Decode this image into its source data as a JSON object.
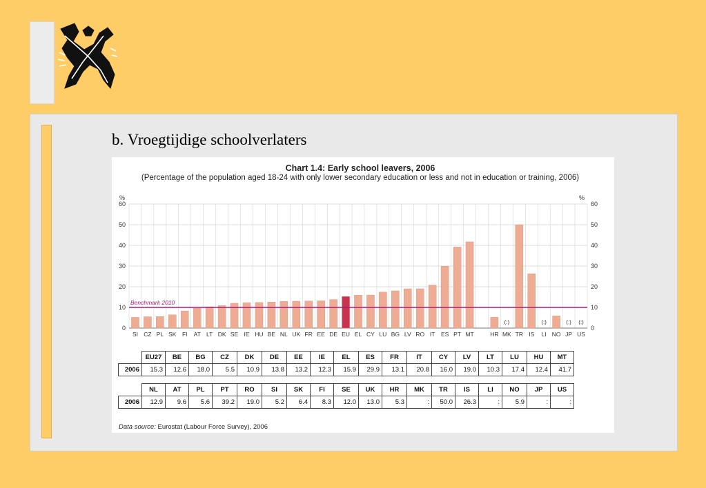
{
  "slide": {
    "title": "b. Vroegtijdige schoolverlaters",
    "colors": {
      "background": "#fecd68",
      "panel": "#e9e9e9"
    },
    "logo_icon": "flemish-lion-icon"
  },
  "chart": {
    "title": "Chart 1.4: Early school leavers, 2006",
    "subtitle": "(Percentage of the population aged 18-24 with only lower secondary education or less and not in education or training, 2006)",
    "source_prefix": "Data source:",
    "source_text": " Eurostat (Labour Force Survey), 2006"
  },
  "chart_data": {
    "type": "bar",
    "title": "Chart 1.4: Early school leavers, 2006",
    "subtitle": "(Percentage of the population aged 18-24 with only lower secondary education or less and not in education or training, 2006)",
    "y_unit": "%",
    "ylim": [
      0,
      60
    ],
    "yticks": [
      0,
      10,
      20,
      30,
      40,
      50,
      60
    ],
    "grid": true,
    "benchmark": {
      "label": "Benchmark 2010",
      "value": 10,
      "color": "#b5177a"
    },
    "colors": {
      "bar": "#eeac94",
      "highlight": "#c8344f",
      "grid": "#bbbbbb"
    },
    "categories": [
      "SI",
      "CZ",
      "PL",
      "SK",
      "FI",
      "AT",
      "LT",
      "DK",
      "SE",
      "IE",
      "HU",
      "BE",
      "NL",
      "UK",
      "FR",
      "EE",
      "DE",
      "EU",
      "EL",
      "CY",
      "LU",
      "BG",
      "LV",
      "RO",
      "IT",
      "ES",
      "PT",
      "MT",
      "",
      "HR",
      "MK",
      "TR",
      "IS",
      "LI",
      "NO",
      "JP",
      "US"
    ],
    "values": [
      5.2,
      5.5,
      5.6,
      6.4,
      8.3,
      9.6,
      10.3,
      10.9,
      12.0,
      12.3,
      12.4,
      12.6,
      12.9,
      13.0,
      13.1,
      13.2,
      13.8,
      15.3,
      15.9,
      16.0,
      17.4,
      18.0,
      19.0,
      19.0,
      20.8,
      29.9,
      39.2,
      41.7,
      null,
      5.3,
      null,
      50.0,
      26.3,
      null,
      5.9,
      null,
      null
    ],
    "missing_label": "(:)",
    "highlight": "EU",
    "table": [
      {
        "headers": [
          "EU27",
          "BE",
          "BG",
          "CZ",
          "DK",
          "DE",
          "EE",
          "IE",
          "EL",
          "ES",
          "FR",
          "IT",
          "CY",
          "LV",
          "LT",
          "LU",
          "HU",
          "MT"
        ],
        "row_label": "2006",
        "values": [
          "15.3",
          "12.6",
          "18.0",
          "5.5",
          "10.9",
          "13.8",
          "13.2",
          "12.3",
          "15.9",
          "29.9",
          "13.1",
          "20.8",
          "16.0",
          "19.0",
          "10.3",
          "17.4",
          "12.4",
          "41.7"
        ]
      },
      {
        "headers": [
          "NL",
          "AT",
          "PL",
          "PT",
          "RO",
          "SI",
          "SK",
          "FI",
          "SE",
          "UK",
          "HR",
          "MK",
          "TR",
          "IS",
          "LI",
          "NO",
          "JP",
          "US"
        ],
        "row_label": "2006",
        "values": [
          "12.9",
          "9.6",
          "5.6",
          "39.2",
          "19.0",
          "5.2",
          "6.4",
          "8.3",
          "12.0",
          "13.0",
          "5.3",
          ":",
          "50.0",
          "26.3",
          ":",
          "5.9",
          ":",
          ":"
        ]
      }
    ]
  }
}
